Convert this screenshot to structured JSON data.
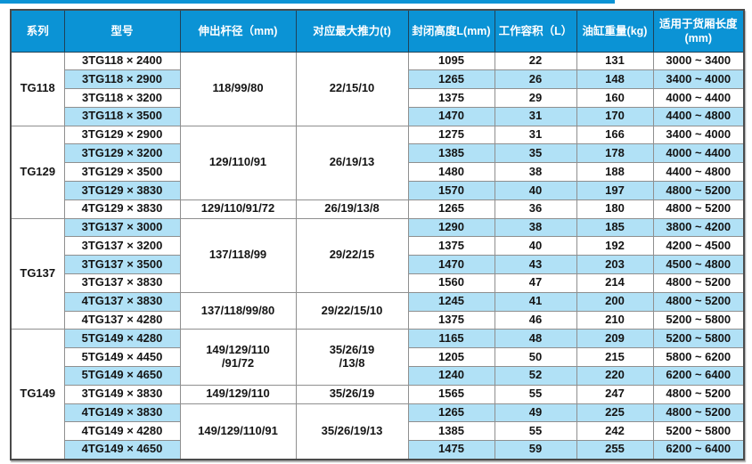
{
  "colors": {
    "header_bg": "#0b93d5",
    "row_alt_bg": "#b1e1f6",
    "outer_border": "#4a4a4a",
    "grid_line": "#8f8f8f"
  },
  "table": {
    "columns": [
      {
        "key": "series",
        "label": "系列"
      },
      {
        "key": "model",
        "label": "型号"
      },
      {
        "key": "rod_diameter",
        "label": "伸出杆径（mm)"
      },
      {
        "key": "max_thrust",
        "label": "对应最大推力(t)"
      },
      {
        "key": "closed_height",
        "label": "封闭高度L(mm)"
      },
      {
        "key": "volume",
        "label": "工作容积（L）"
      },
      {
        "key": "weight",
        "label": "油缸重量(kg)"
      },
      {
        "key": "box_length",
        "label": "适用于货厢长度\n(mm)"
      }
    ],
    "sections": [
      {
        "series": "TG118",
        "groups": [
          {
            "span": 4,
            "rod": [
              "118/99/80"
            ],
            "thrust": [
              "22/15/10"
            ]
          }
        ],
        "rows": [
          {
            "model": "3TG118 × 2400",
            "closed_height": "1095",
            "volume": "22",
            "weight": "131",
            "box_length": "3000 ~ 3400"
          },
          {
            "model": "3TG118 × 2900",
            "closed_height": "1265",
            "volume": "26",
            "weight": "148",
            "box_length": "3400 ~ 4000"
          },
          {
            "model": "3TG118 × 3200",
            "closed_height": "1375",
            "volume": "29",
            "weight": "160",
            "box_length": "4000 ~ 4400"
          },
          {
            "model": "3TG118 × 3500",
            "closed_height": "1470",
            "volume": "31",
            "weight": "170",
            "box_length": "4400 ~ 4800"
          }
        ]
      },
      {
        "series": "TG129",
        "groups": [
          {
            "span": 4,
            "rod": [
              "129/110/91"
            ],
            "thrust": [
              "26/19/13"
            ]
          },
          {
            "span": 1,
            "rod": [
              "129/110/91/72"
            ],
            "thrust": [
              "26/19/13/8"
            ]
          }
        ],
        "rows": [
          {
            "model": "3TG129 × 2900",
            "closed_height": "1275",
            "volume": "31",
            "weight": "166",
            "box_length": "3400 ~ 4000"
          },
          {
            "model": "3TG129 × 3200",
            "closed_height": "1385",
            "volume": "35",
            "weight": "178",
            "box_length": "4000 ~ 4400"
          },
          {
            "model": "3TG129 × 3500",
            "closed_height": "1480",
            "volume": "38",
            "weight": "188",
            "box_length": "4400 ~ 4800"
          },
          {
            "model": "3TG129 × 3830",
            "closed_height": "1570",
            "volume": "40",
            "weight": "197",
            "box_length": "4800 ~ 5200"
          },
          {
            "model": "4TG129 × 3830",
            "closed_height": "1265",
            "volume": "36",
            "weight": "180",
            "box_length": "4800 ~ 5200"
          }
        ]
      },
      {
        "series": "TG137",
        "groups": [
          {
            "span": 4,
            "rod": [
              "137/118/99"
            ],
            "thrust": [
              "29/22/15"
            ]
          },
          {
            "span": 2,
            "rod": [
              "137/118/99/80"
            ],
            "thrust": [
              "29/22/15/10"
            ]
          }
        ],
        "rows": [
          {
            "model": "3TG137 × 3000",
            "closed_height": "1290",
            "volume": "38",
            "weight": "185",
            "box_length": "3800 ~ 4200"
          },
          {
            "model": "3TG137 × 3200",
            "closed_height": "1375",
            "volume": "40",
            "weight": "192",
            "box_length": "4200 ~ 4500"
          },
          {
            "model": "3TG137 × 3500",
            "closed_height": "1470",
            "volume": "43",
            "weight": "203",
            "box_length": "4500 ~ 4800"
          },
          {
            "model": "3TG137 × 3830",
            "closed_height": "1560",
            "volume": "47",
            "weight": "214",
            "box_length": "4800 ~ 5200"
          },
          {
            "model": "4TG137 × 3830",
            "closed_height": "1245",
            "volume": "41",
            "weight": "200",
            "box_length": "4800 ~ 5200"
          },
          {
            "model": "4TG137 × 4280",
            "closed_height": "1375",
            "volume": "46",
            "weight": "210",
            "box_length": "5200 ~ 5800"
          }
        ]
      },
      {
        "series": "TG149",
        "groups": [
          {
            "span": 3,
            "rod": [
              "149/129/110",
              "/91/72"
            ],
            "thrust": [
              "35/26/19",
              "/13/8"
            ]
          },
          {
            "span": 1,
            "rod": [
              "149/129/110"
            ],
            "thrust": [
              "35/26/19"
            ]
          },
          {
            "span": 3,
            "rod": [
              "149/129/110/91"
            ],
            "thrust": [
              "35/26/19/13"
            ]
          }
        ],
        "rows": [
          {
            "model": "5TG149 × 4280",
            "closed_height": "1165",
            "volume": "48",
            "weight": "209",
            "box_length": "5200 ~ 5800"
          },
          {
            "model": "5TG149 × 4450",
            "closed_height": "1205",
            "volume": "50",
            "weight": "215",
            "box_length": "5800 ~ 6200"
          },
          {
            "model": "5TG149 × 4650",
            "closed_height": "1240",
            "volume": "52",
            "weight": "220",
            "box_length": "6200 ~ 6400"
          },
          {
            "model": "3TG149 × 3830",
            "closed_height": "1565",
            "volume": "55",
            "weight": "247",
            "box_length": "4800 ~ 5200"
          },
          {
            "model": "4TG149 × 3830",
            "closed_height": "1265",
            "volume": "49",
            "weight": "225",
            "box_length": "4800 ~ 5200"
          },
          {
            "model": "4TG149 × 4280",
            "closed_height": "1385",
            "volume": "55",
            "weight": "242",
            "box_length": "5200 ~ 5800"
          },
          {
            "model": "4TG149 × 4650",
            "closed_height": "1475",
            "volume": "59",
            "weight": "255",
            "box_length": "6200 ~ 6400"
          }
        ]
      }
    ]
  }
}
